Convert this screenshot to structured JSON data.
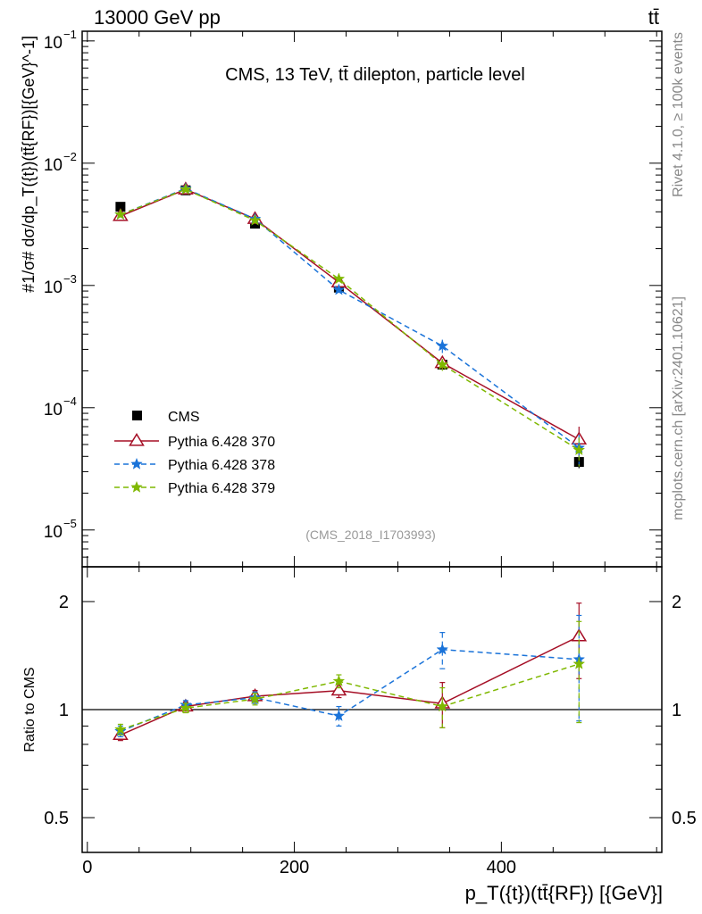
{
  "header": {
    "left": "13000 GeV pp",
    "right": "tt̄"
  },
  "side": {
    "top": "Rivet 4.1.0, ≥ 100k events",
    "bottom": "mcplots.cern.ch [arXiv:2401.10621]"
  },
  "chart_data": {
    "type": "scatter",
    "title": "CMS, 13 TeV, tt̄ dilepton, particle level",
    "watermark": "(CMS_2018_I1703993)",
    "xlabel": "p_T({t})(tt̄{RF}) [{GeV}]",
    "ylabel": "#1/σ# dσ/dp_T({t})(tt̄{RF})[{GeV}^-1]",
    "ratio_ylabel": "Ratio to CMS",
    "xlim": [
      -5,
      555
    ],
    "ylim": [
      5e-06,
      0.12
    ],
    "ratio_ylim": [
      0.4,
      2.5
    ],
    "x_ticks": [
      {
        "v": 0,
        "label": "0"
      },
      {
        "v": 200,
        "label": "200"
      },
      {
        "v": 400,
        "label": "400"
      }
    ],
    "y_ticks": [
      {
        "v": 0.1,
        "base": "10",
        "exp": "−1"
      },
      {
        "v": 0.01,
        "base": "10",
        "exp": "−2"
      },
      {
        "v": 0.001,
        "base": "10",
        "exp": "−3"
      },
      {
        "v": 0.0001,
        "base": "10",
        "exp": "−4"
      },
      {
        "v": 1e-05,
        "base": "10",
        "exp": "−5"
      }
    ],
    "ratio_ticks": [
      {
        "v": 0.5,
        "label": "0.5"
      },
      {
        "v": 1,
        "label": "1"
      },
      {
        "v": 2,
        "label": "2"
      }
    ],
    "x": [
      32,
      95,
      162,
      243,
      343,
      475
    ],
    "xerr": [
      [
        0,
        65
      ],
      [
        65,
        125
      ],
      [
        125,
        200
      ],
      [
        200,
        290
      ],
      [
        290,
        400
      ],
      [
        400,
        550
      ]
    ],
    "data": {
      "name": "CMS",
      "values": [
        0.0044,
        0.006,
        0.0032,
        0.00096,
        0.000225,
        3.6e-05
      ],
      "errors": [
        0.0002,
        0.0002,
        0.00012,
        5e-05,
        2e-05,
        4e-06
      ]
    },
    "series": [
      {
        "name": "Pythia 6.428 370",
        "color": "#a50e25",
        "dash": "solid",
        "marker": "triangle",
        "values": [
          0.0037,
          0.0061,
          0.0035,
          0.00106,
          0.000232,
          5.5e-05
        ],
        "errors": [
          0.0001,
          0.00012,
          8e-05,
          4e-05,
          2.5e-05,
          1.5e-05
        ],
        "ratio": [
          0.85,
          1.02,
          1.09,
          1.13,
          1.04,
          1.6
        ],
        "ratio_err": [
          0.03,
          0.03,
          0.04,
          0.05,
          0.15,
          0.38
        ]
      },
      {
        "name": "Pythia 6.428 378",
        "color": "#1a73d9",
        "dash": "dashed",
        "marker": "star",
        "values": [
          0.0038,
          0.0062,
          0.0035,
          0.00092,
          0.00032,
          4.7e-05
        ],
        "errors": [
          0.0001,
          0.00012,
          8e-05,
          4e-05,
          4e-05,
          1.3e-05
        ],
        "ratio": [
          0.87,
          1.03,
          1.08,
          0.96,
          1.47,
          1.38
        ],
        "ratio_err": [
          0.03,
          0.03,
          0.04,
          0.06,
          0.17,
          0.45
        ]
      },
      {
        "name": "Pythia 6.428 379",
        "color": "#7fb800",
        "dash": "dashed",
        "marker": "star",
        "values": [
          0.0038,
          0.0061,
          0.0034,
          0.00113,
          0.000225,
          4.5e-05
        ],
        "errors": [
          0.0001,
          0.00012,
          8e-05,
          5e-05,
          2.5e-05,
          1.2e-05
        ],
        "ratio": [
          0.88,
          1.01,
          1.07,
          1.2,
          1.02,
          1.34
        ],
        "ratio_err": [
          0.03,
          0.03,
          0.04,
          0.05,
          0.13,
          0.42
        ]
      }
    ]
  }
}
